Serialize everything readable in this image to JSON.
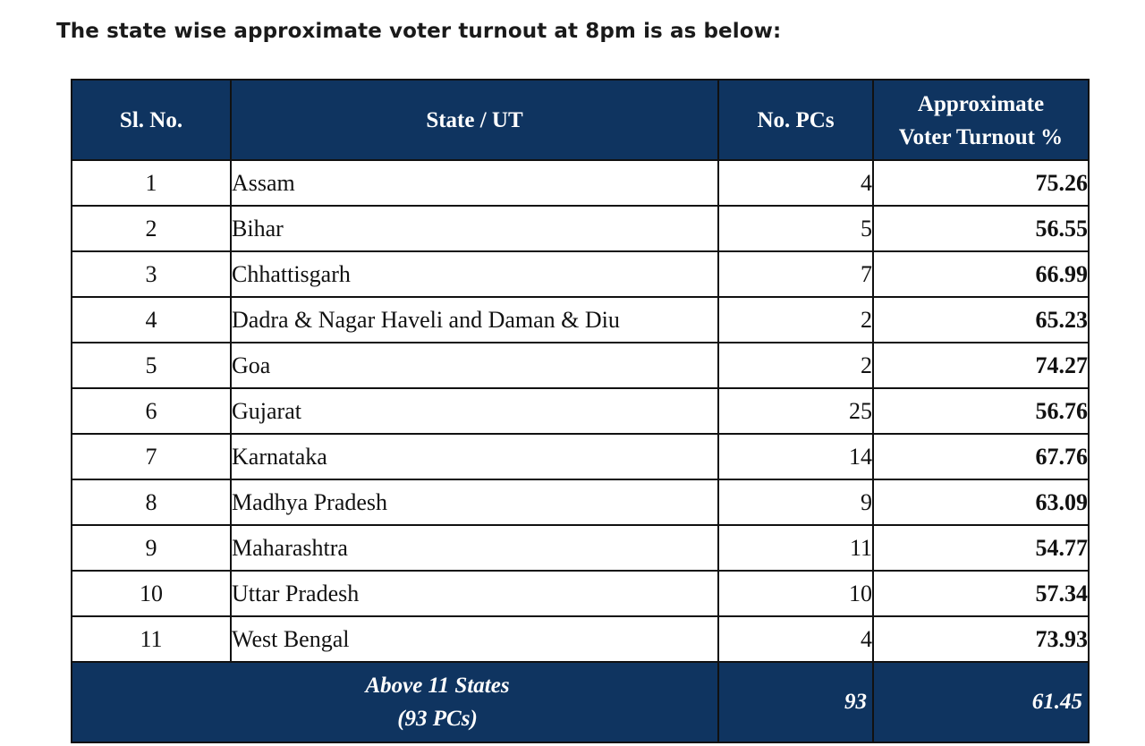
{
  "heading": "The state wise approximate voter turnout at 8pm is as below:",
  "table": {
    "headers": {
      "sl_no": "Sl. No.",
      "state": "State / UT",
      "no_pcs": "No. PCs",
      "turnout_line1": "Approximate",
      "turnout_line2": "Voter Turnout %"
    },
    "rows": [
      {
        "sl": "1",
        "state": "Assam",
        "pcs": "4",
        "turnout": "75.26"
      },
      {
        "sl": "2",
        "state": "Bihar",
        "pcs": "5",
        "turnout": "56.55"
      },
      {
        "sl": "3",
        "state": "Chhattisgarh",
        "pcs": "7",
        "turnout": "66.99"
      },
      {
        "sl": "4",
        "state": "Dadra & Nagar Haveli and Daman & Diu",
        "pcs": "2",
        "turnout": "65.23"
      },
      {
        "sl": "5",
        "state": "Goa",
        "pcs": "2",
        "turnout": "74.27"
      },
      {
        "sl": "6",
        "state": "Gujarat",
        "pcs": "25",
        "turnout": "56.76"
      },
      {
        "sl": "7",
        "state": "Karnataka",
        "pcs": "14",
        "turnout": "67.76"
      },
      {
        "sl": "8",
        "state": "Madhya Pradesh",
        "pcs": "9",
        "turnout": "63.09"
      },
      {
        "sl": "9",
        "state": "Maharashtra",
        "pcs": "11",
        "turnout": "54.77"
      },
      {
        "sl": "10",
        "state": "Uttar Pradesh",
        "pcs": "10",
        "turnout": "57.34"
      },
      {
        "sl": "11",
        "state": "West Bengal",
        "pcs": "4",
        "turnout": "73.93"
      }
    ],
    "total": {
      "label_line1": "Above 11 States",
      "label_line2": "(93 PCs)",
      "pcs": "93",
      "turnout": "61.45"
    }
  },
  "colors": {
    "header_bg": "#0f3460",
    "header_text": "#ffffff",
    "border": "#111111"
  }
}
